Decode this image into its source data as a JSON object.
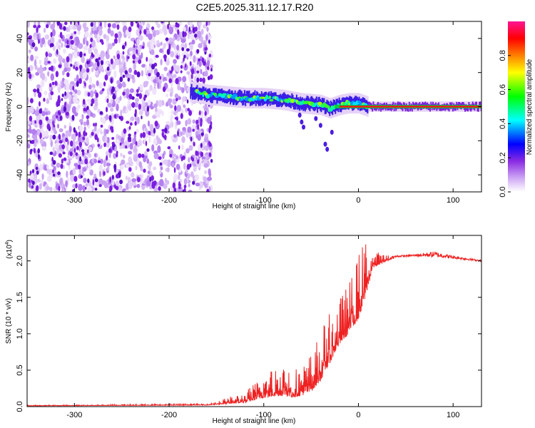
{
  "title": "C2E5.2025.311.12.17.R20",
  "chart_data": [
    {
      "type": "heatmap",
      "xlabel": "Height of straight line (km)",
      "ylabel": "Frequency (Hz)",
      "xlim": [
        -350,
        130
      ],
      "ylim": [
        -50,
        50
      ],
      "xticks": [
        -300,
        -200,
        -100,
        0,
        100
      ],
      "xtick_labels": [
        "-300",
        "-200",
        "-100",
        "0",
        "100"
      ],
      "yticks": [
        -40,
        -20,
        0,
        20,
        40
      ],
      "ytick_labels": [
        "-40",
        "-20",
        "0",
        "20",
        "40"
      ],
      "noise_region_x": [
        -350,
        -155
      ],
      "signal_ridge": {
        "x": [
          -178,
          -160,
          -140,
          -120,
          -100,
          -80,
          -60,
          -40,
          -30,
          -20,
          -10,
          0,
          10,
          40,
          80,
          130
        ],
        "freq": [
          9,
          7,
          6,
          5,
          5,
          4,
          2,
          1,
          -1,
          1,
          2,
          2,
          0,
          0,
          0,
          0
        ]
      },
      "colorbar": {
        "label": "Normalized spectral amplitude",
        "range": [
          0,
          1
        ],
        "ticks": [
          0.0,
          0.2,
          0.4,
          0.6,
          0.8
        ],
        "tick_labels": [
          "0.0",
          "0.2",
          "0.4",
          "0.6",
          "0.8"
        ],
        "colors": [
          "#ffffff",
          "#8a2be2",
          "#0000ff",
          "#00ffff",
          "#00ff00",
          "#ffff00",
          "#ff8000",
          "#ff0000",
          "#ff1493"
        ]
      }
    },
    {
      "type": "line",
      "xlabel": "Height of straight line (km)",
      "ylabel": "SNR (10 * v/v)",
      "exponent_label": "(x10",
      "exponent_power": "4",
      "exponent_close": ")",
      "xlim": [
        -350,
        130
      ],
      "ylim": [
        0,
        2.35
      ],
      "xticks": [
        -300,
        -200,
        -100,
        0,
        100
      ],
      "xtick_labels": [
        "-300",
        "-200",
        "-100",
        "0",
        "100"
      ],
      "yticks": [
        0.0,
        0.5,
        1.0,
        1.5,
        2.0
      ],
      "ytick_labels": [
        "0.0",
        "0.5",
        "1.0",
        "1.5",
        "2.0"
      ],
      "color": "#ee2222",
      "series_envelope": {
        "x": [
          -350,
          -160,
          -120,
          -100,
          -80,
          -70,
          -60,
          -50,
          -40,
          -30,
          -20,
          -10,
          0,
          8,
          15,
          30,
          40,
          60,
          80,
          100,
          130
        ],
        "base": [
          0.01,
          0.02,
          0.05,
          0.12,
          0.15,
          0.12,
          0.15,
          0.2,
          0.35,
          0.6,
          0.85,
          1.0,
          1.2,
          1.5,
          1.9,
          2.0,
          2.05,
          2.06,
          2.05,
          2.03,
          1.99
        ],
        "peak": [
          0.02,
          0.04,
          0.2,
          0.45,
          0.65,
          0.55,
          0.55,
          0.75,
          1.05,
          1.3,
          1.5,
          1.7,
          2.1,
          2.35,
          2.15,
          2.08,
          2.08,
          2.1,
          2.15,
          2.08,
          2.02
        ]
      }
    }
  ]
}
